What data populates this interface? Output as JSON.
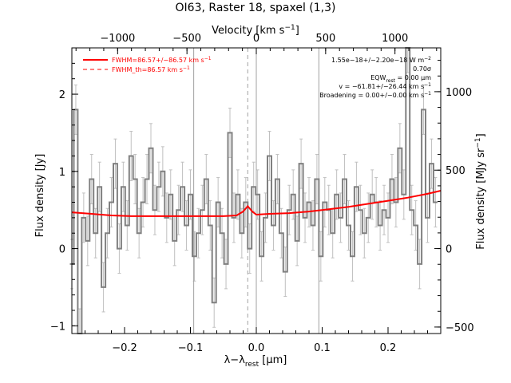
{
  "chart_data": {
    "type": "line",
    "title": "OI63, Raster 18, spaxel (1,3)",
    "xlabel": "λ−λ",
    "xlabel_sub": "rest",
    "xlabel_unit": " [μm]",
    "ylabel": "Flux density [Jy]",
    "top_xlabel_main": "Velocity [km s",
    "top_xlabel_sup": "−1",
    "top_xlabel_end": "]",
    "right_ylabel_main": "Flux density [MJy sr",
    "right_ylabel_sup": "−1",
    "right_ylabel_end": "]",
    "xlim": [
      -0.28,
      0.28
    ],
    "ylim": [
      -1.1,
      2.6
    ],
    "x_ticks": [
      -0.2,
      -0.1,
      0.0,
      0.1,
      0.2
    ],
    "x_tick_labels": [
      "−0.2",
      "−0.1",
      "0.0",
      "0.1",
      "0.2"
    ],
    "y_ticks": [
      -1,
      0,
      1,
      2
    ],
    "y_tick_labels": [
      "−1",
      "0",
      "1",
      "2"
    ],
    "top_ticks_velocity": [
      -1000,
      -500,
      0,
      500,
      1000
    ],
    "top_tick_labels": [
      "−1000",
      "−500",
      "0",
      "500",
      "1000"
    ],
    "velocity_per_micron": 4750,
    "right_ticks_mjy": [
      -500,
      0,
      500,
      1000
    ],
    "right_tick_labels": [
      "−500",
      "0",
      "500",
      "1000"
    ],
    "mjy_per_jy": 492,
    "vertical_lines": [
      -0.095,
      0.0,
      0.095
    ],
    "dashed_line_x": -0.013,
    "grid": false,
    "series": [
      {
        "name": "",
        "style": "step",
        "color": "#808080",
        "x": [
          -0.28,
          -0.274,
          -0.268,
          -0.262,
          -0.256,
          -0.25,
          -0.244,
          -0.238,
          -0.232,
          -0.226,
          -0.22,
          -0.214,
          -0.208,
          -0.202,
          -0.196,
          -0.19,
          -0.184,
          -0.178,
          -0.172,
          -0.166,
          -0.16,
          -0.154,
          -0.148,
          -0.142,
          -0.136,
          -0.13,
          -0.124,
          -0.118,
          -0.112,
          -0.106,
          -0.1,
          -0.094,
          -0.088,
          -0.082,
          -0.076,
          -0.07,
          -0.064,
          -0.058,
          -0.052,
          -0.046,
          -0.04,
          -0.034,
          -0.028,
          -0.022,
          -0.016,
          -0.01,
          -0.004,
          0.002,
          0.008,
          0.014,
          0.02,
          0.026,
          0.032,
          0.038,
          0.044,
          0.05,
          0.056,
          0.062,
          0.068,
          0.074,
          0.08,
          0.086,
          0.092,
          0.098,
          0.104,
          0.11,
          0.116,
          0.122,
          0.128,
          0.134,
          0.14,
          0.146,
          0.152,
          0.158,
          0.164,
          0.17,
          0.176,
          0.182,
          0.188,
          0.194,
          0.2,
          0.206,
          0.212,
          0.218,
          0.224,
          0.23,
          0.236,
          0.242,
          0.248,
          0.254,
          0.26,
          0.266,
          0.272
        ],
        "y": [
          -0.2,
          1.8,
          -1.1,
          0.4,
          0.1,
          0.9,
          0.2,
          0.8,
          -0.5,
          0.2,
          0.6,
          1.1,
          0.0,
          0.8,
          0.3,
          1.2,
          0.9,
          0.2,
          0.6,
          0.9,
          1.3,
          0.5,
          0.8,
          1.0,
          0.4,
          0.7,
          0.1,
          0.5,
          0.8,
          0.3,
          0.7,
          -0.1,
          0.2,
          0.5,
          0.9,
          0.3,
          -0.7,
          0.6,
          0.2,
          -0.2,
          1.5,
          0.4,
          0.7,
          0.2,
          0.6,
          0.0,
          0.8,
          0.7,
          -0.1,
          0.4,
          1.2,
          0.3,
          0.9,
          0.2,
          -0.3,
          0.5,
          0.7,
          0.1,
          1.1,
          0.4,
          0.6,
          0.3,
          0.9,
          -0.1,
          0.6,
          0.5,
          0.2,
          0.7,
          0.4,
          0.9,
          0.3,
          -0.1,
          0.8,
          0.5,
          0.2,
          0.4,
          0.7,
          0.6,
          0.3,
          0.5,
          0.4,
          0.9,
          0.6,
          1.3,
          0.7,
          2.6,
          0.5,
          0.3,
          -0.2,
          1.8,
          0.4,
          1.1,
          0.6
        ],
        "yerr": 0.32
      },
      {
        "name": "FWHM=86.57+/−86.57 km s−1",
        "style": "solid",
        "color": "#ff0000",
        "x": [
          -0.28,
          -0.25,
          -0.22,
          -0.19,
          -0.16,
          -0.13,
          -0.1,
          -0.07,
          -0.05,
          -0.03,
          -0.02,
          -0.013,
          -0.006,
          0.0,
          0.02,
          0.05,
          0.08,
          0.11,
          0.14,
          0.17,
          0.2,
          0.23,
          0.26,
          0.28
        ],
        "y": [
          0.47,
          0.45,
          0.43,
          0.42,
          0.42,
          0.42,
          0.42,
          0.42,
          0.42,
          0.43,
          0.48,
          0.55,
          0.48,
          0.44,
          0.45,
          0.46,
          0.48,
          0.51,
          0.54,
          0.58,
          0.62,
          0.66,
          0.71,
          0.75
        ]
      }
    ],
    "legend": {
      "placement": "top-left",
      "entries": [
        {
          "text": "FWHM=86.57+/−86.57 km s",
          "sup": "−1",
          "style": "solid"
        },
        {
          "text": "FWHM_th=86.57 km s",
          "sup": "−1",
          "style": "dashed"
        }
      ]
    },
    "annotations": {
      "placement": "top-right",
      "lines": [
        "1.55e−18+/−2.20e−18 W m",
        "0.70σ",
        "EQW",
        "v = −61.81+/−26.44 km s",
        "Broadening = 0.00+/−0.00 km s"
      ],
      "line1_sup": "−2",
      "eqw_sub": "rest",
      "eqw_value": " = 0.00 μm",
      "v_sup": "−1",
      "broad_sup": "−1"
    },
    "colors": {
      "spectrum": "#808080",
      "fit": "#ff0000",
      "errorbars": "#c0c0c0",
      "vlines": "#a0a0a0"
    }
  }
}
